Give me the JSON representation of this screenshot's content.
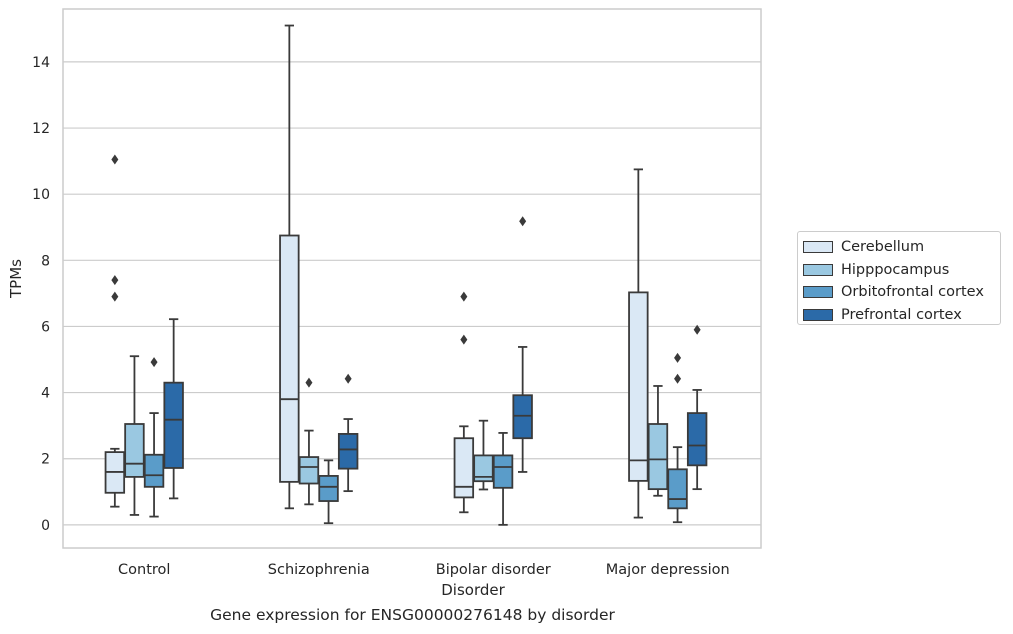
{
  "chart_data": {
    "type": "boxplot",
    "caption": "Gene expression for ENSG00000276148 by disorder",
    "xlabel": "Disorder",
    "ylabel": "TPMs",
    "ylim": [
      -0.7,
      15.6
    ],
    "yticks": [
      0,
      2,
      4,
      6,
      8,
      10,
      12,
      14
    ],
    "grid": "horizontal",
    "legend_position": "right",
    "categories": [
      "Control",
      "Schizophrenia",
      "Bipolar disorder",
      "Major depression"
    ],
    "series": [
      {
        "name": "Cerebellum",
        "color": "#dae8f5",
        "boxes": [
          {
            "whislo": 0.55,
            "q1": 0.97,
            "med": 1.6,
            "q3": 2.2,
            "whishi": 2.3,
            "fliers": [
              6.9,
              7.4,
              11.05
            ]
          },
          {
            "whislo": 0.5,
            "q1": 1.3,
            "med": 3.8,
            "q3": 8.75,
            "whishi": 15.1,
            "fliers": []
          },
          {
            "whislo": 0.38,
            "q1": 0.83,
            "med": 1.15,
            "q3": 2.62,
            "whishi": 2.98,
            "fliers": [
              5.6,
              6.9
            ]
          },
          {
            "whislo": 0.22,
            "q1": 1.33,
            "med": 1.95,
            "q3": 7.03,
            "whishi": 10.75,
            "fliers": []
          }
        ]
      },
      {
        "name": "Hipppocampus",
        "color": "#9ac8e1",
        "boxes": [
          {
            "whislo": 0.3,
            "q1": 1.45,
            "med": 1.85,
            "q3": 3.05,
            "whishi": 5.1,
            "fliers": []
          },
          {
            "whislo": 0.62,
            "q1": 1.25,
            "med": 1.75,
            "q3": 2.05,
            "whishi": 2.85,
            "fliers": [
              4.3
            ]
          },
          {
            "whislo": 1.07,
            "q1": 1.32,
            "med": 1.45,
            "q3": 2.1,
            "whishi": 3.15,
            "fliers": []
          },
          {
            "whislo": 0.88,
            "q1": 1.08,
            "med": 1.98,
            "q3": 3.05,
            "whishi": 4.2,
            "fliers": []
          }
        ]
      },
      {
        "name": "Orbitofrontal cortex",
        "color": "#5a9cc9",
        "boxes": [
          {
            "whislo": 0.25,
            "q1": 1.15,
            "med": 1.5,
            "q3": 2.12,
            "whishi": 3.38,
            "fliers": [
              4.92
            ]
          },
          {
            "whislo": 0.05,
            "q1": 0.72,
            "med": 1.15,
            "q3": 1.48,
            "whishi": 1.95,
            "fliers": []
          },
          {
            "whislo": 0.0,
            "q1": 1.12,
            "med": 1.75,
            "q3": 2.1,
            "whishi": 2.78,
            "fliers": []
          },
          {
            "whislo": 0.08,
            "q1": 0.5,
            "med": 0.78,
            "q3": 1.68,
            "whishi": 2.35,
            "fliers": [
              4.42,
              5.05
            ]
          }
        ]
      },
      {
        "name": "Prefrontal cortex",
        "color": "#2b6aa8",
        "boxes": [
          {
            "whislo": 0.8,
            "q1": 1.72,
            "med": 3.18,
            "q3": 4.3,
            "whishi": 6.22,
            "fliers": []
          },
          {
            "whislo": 1.02,
            "q1": 1.7,
            "med": 2.28,
            "q3": 2.75,
            "whishi": 3.2,
            "fliers": [
              4.42
            ]
          },
          {
            "whislo": 1.6,
            "q1": 2.62,
            "med": 3.3,
            "q3": 3.92,
            "whishi": 5.38,
            "fliers": [
              9.18
            ]
          },
          {
            "whislo": 1.08,
            "q1": 1.8,
            "med": 2.4,
            "q3": 3.38,
            "whishi": 4.08,
            "fliers": [
              5.9
            ]
          }
        ]
      }
    ]
  }
}
